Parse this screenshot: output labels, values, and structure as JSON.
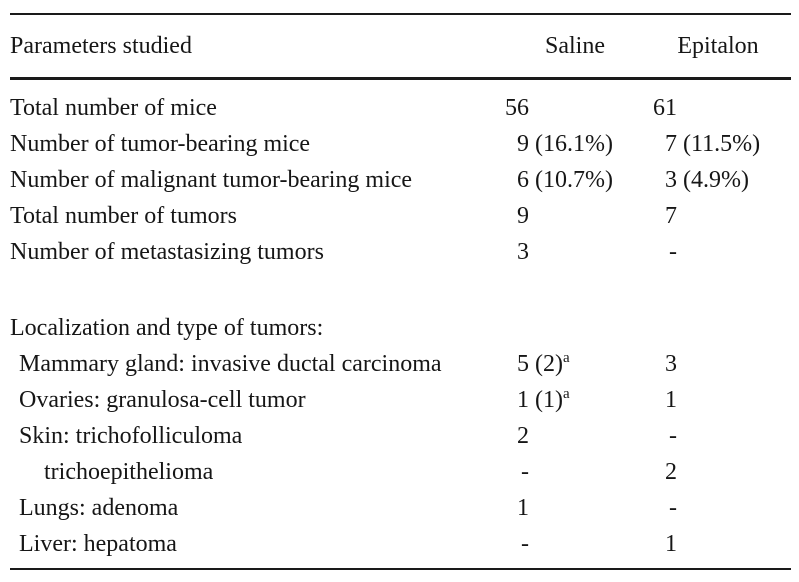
{
  "table": {
    "colors": {
      "text": "#161616",
      "rule": "#1a1a1a",
      "background": "#ffffff"
    },
    "header": {
      "parameter": "Parameters studied",
      "saline": "Saline",
      "epitalon": "Epitalon"
    },
    "rows": [
      {
        "label": "Total number of mice",
        "saline": {
          "num": "56",
          "rest": "",
          "sup": ""
        },
        "epitalon": {
          "num": "61",
          "rest": "",
          "sup": ""
        }
      },
      {
        "label": "Number of tumor-bearing mice",
        "saline": {
          "num": "9",
          "rest": " (16.1%)",
          "sup": ""
        },
        "epitalon": {
          "num": "7",
          "rest": " (11.5%)",
          "sup": ""
        }
      },
      {
        "label": "Number of malignant tumor-bearing mice",
        "saline": {
          "num": "6",
          "rest": " (10.7%)",
          "sup": ""
        },
        "epitalon": {
          "num": "3",
          "rest": " (4.9%)",
          "sup": ""
        }
      },
      {
        "label": "Total number of tumors",
        "saline": {
          "num": "9",
          "rest": "",
          "sup": ""
        },
        "epitalon": {
          "num": "7",
          "rest": "",
          "sup": ""
        }
      },
      {
        "label": "Number of metastasizing tumors",
        "saline": {
          "num": "3",
          "rest": "",
          "sup": ""
        },
        "epitalon": {
          "num": "-",
          "rest": "",
          "sup": ""
        }
      },
      {
        "label": "Localization and type of tumors:",
        "saline": {
          "num": "",
          "rest": "",
          "sup": ""
        },
        "epitalon": {
          "num": "",
          "rest": "",
          "sup": ""
        }
      },
      {
        "label": "Mammary gland: invasive ductal carcinoma",
        "saline": {
          "num": "5",
          "rest": " (2)",
          "sup": "a"
        },
        "epitalon": {
          "num": "3",
          "rest": "",
          "sup": ""
        }
      },
      {
        "label": "Ovaries: granulosa-cell tumor",
        "saline": {
          "num": "1",
          "rest": " (1)",
          "sup": "a"
        },
        "epitalon": {
          "num": "1",
          "rest": "",
          "sup": ""
        }
      },
      {
        "label": "Skin: trichofolliculoma",
        "saline": {
          "num": "2",
          "rest": "",
          "sup": ""
        },
        "epitalon": {
          "num": "-",
          "rest": "",
          "sup": ""
        }
      },
      {
        "label": "trichoepithelioma",
        "saline": {
          "num": "-",
          "rest": "",
          "sup": ""
        },
        "epitalon": {
          "num": "2",
          "rest": "",
          "sup": ""
        }
      },
      {
        "label": "Lungs: adenoma",
        "saline": {
          "num": "1",
          "rest": "",
          "sup": ""
        },
        "epitalon": {
          "num": "-",
          "rest": "",
          "sup": ""
        }
      },
      {
        "label": "Liver: hepatoma",
        "saline": {
          "num": "-",
          "rest": "",
          "sup": ""
        },
        "epitalon": {
          "num": "1",
          "rest": "",
          "sup": ""
        }
      }
    ]
  }
}
